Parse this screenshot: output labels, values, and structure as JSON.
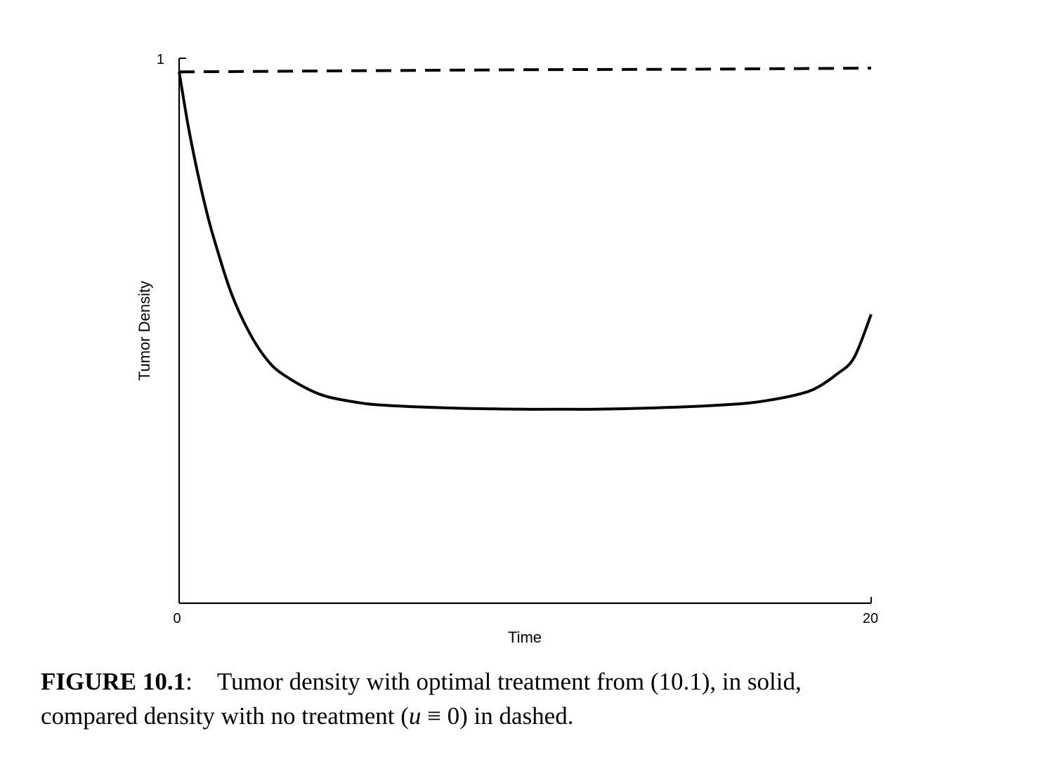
{
  "chart_data": {
    "type": "line",
    "xlabel": "Time",
    "ylabel": "Tumor Density",
    "xlim": [
      0,
      20
    ],
    "ylim": [
      0,
      1
    ],
    "x_ticks": [
      "0",
      "20"
    ],
    "y_ticks": [
      "1"
    ],
    "grid": false,
    "series": [
      {
        "style": "solid",
        "color": "#000000",
        "x": [
          0,
          0.25,
          0.5,
          0.75,
          1,
          1.5,
          2,
          2.5,
          3,
          4,
          5,
          6,
          8,
          10,
          11,
          12,
          14,
          16,
          17,
          18,
          18.5,
          19,
          19.5,
          20
        ],
        "y": [
          0.975,
          0.88,
          0.8,
          0.73,
          0.67,
          0.57,
          0.5,
          0.45,
          0.42,
          0.385,
          0.37,
          0.363,
          0.358,
          0.356,
          0.356,
          0.356,
          0.359,
          0.365,
          0.372,
          0.385,
          0.398,
          0.42,
          0.45,
          0.53
        ]
      },
      {
        "style": "dashed",
        "color": "#000000",
        "x": [
          0,
          5,
          10,
          15,
          20
        ],
        "y": [
          0.975,
          0.977,
          0.979,
          0.98,
          0.982
        ]
      }
    ]
  },
  "caption": {
    "label": "FIGURE 10.1",
    "colon": ":",
    "text_line1": "Tumor density with optimal treatment from (10.1), in solid,",
    "text_line2a": "compared density with no treatment (",
    "math_var": "u",
    "math_rest": " ≡ 0",
    "text_line2b": ") in dashed."
  }
}
